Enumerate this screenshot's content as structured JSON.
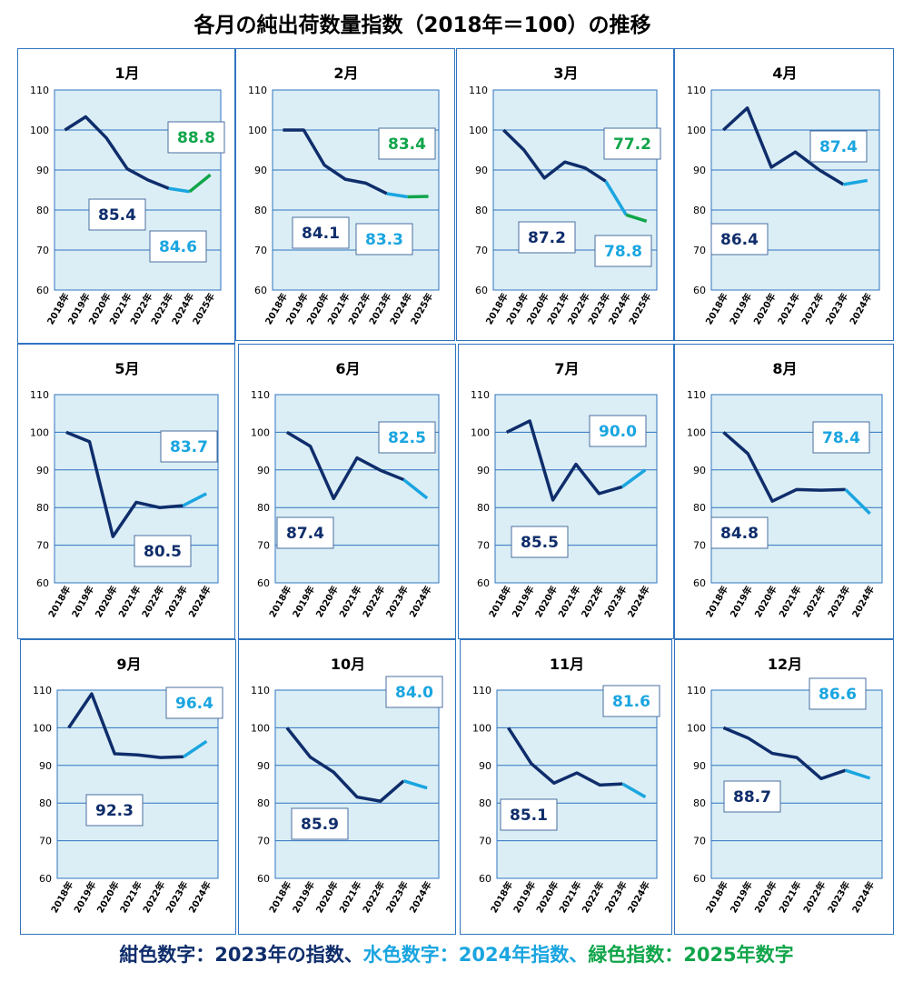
{
  "title": "各月の純出荷数量指数（2018年＝100）の推移",
  "legend": {
    "navy_text": "紺色数字：2023年の指数",
    "sep1": "、",
    "sky_text": "水色数字：2024年指数",
    "sep2": "、",
    "green_text": "緑色指数：2025年数字"
  },
  "colors": {
    "navy": "#0f2d6b",
    "sky": "#1aa5e0",
    "green": "#10a54a",
    "plot_bg": "#dbeef5",
    "grid": "#2f74c0",
    "border": "#2f74c0"
  },
  "chart_data": [
    {
      "type": "line",
      "title": "1月",
      "categories": [
        "2018年",
        "2019年",
        "2020年",
        "2021年",
        "2022年",
        "2023年",
        "2024年",
        "2025年"
      ],
      "values": [
        100,
        103.3,
        98,
        90.3,
        87.5,
        85.4,
        84.6,
        88.8
      ],
      "ylim": [
        60,
        110
      ],
      "yticks": [
        60,
        70,
        80,
        90,
        100,
        110
      ],
      "labels": [
        {
          "text": "85.4",
          "color": "navy"
        },
        {
          "text": "84.6",
          "color": "sky"
        },
        {
          "text": "88.8",
          "color": "green"
        }
      ]
    },
    {
      "type": "line",
      "title": "2月",
      "categories": [
        "2018年",
        "2019年",
        "2020年",
        "2021年",
        "2022年",
        "2023年",
        "2024年",
        "2025年"
      ],
      "values": [
        100,
        100,
        91.2,
        87.7,
        86.7,
        84.1,
        83.3,
        83.4
      ],
      "ylim": [
        60,
        110
      ],
      "yticks": [
        60,
        70,
        80,
        90,
        100,
        110
      ],
      "labels": [
        {
          "text": "84.1",
          "color": "navy"
        },
        {
          "text": "83.3",
          "color": "sky"
        },
        {
          "text": "83.4",
          "color": "green"
        }
      ]
    },
    {
      "type": "line",
      "title": "3月",
      "categories": [
        "2018年",
        "2019年",
        "2020年",
        "2021年",
        "2022年",
        "2023年",
        "2024年",
        "2025年"
      ],
      "values": [
        100,
        95,
        88,
        92,
        90.5,
        87.2,
        78.8,
        77.2
      ],
      "ylim": [
        60,
        110
      ],
      "yticks": [
        60,
        70,
        80,
        90,
        100,
        110
      ],
      "labels": [
        {
          "text": "87.2",
          "color": "navy"
        },
        {
          "text": "78.8",
          "color": "sky"
        },
        {
          "text": "77.2",
          "color": "green"
        }
      ]
    },
    {
      "type": "line",
      "title": "4月",
      "categories": [
        "2018年",
        "2019年",
        "2020年",
        "2021年",
        "2022年",
        "2023年",
        "2024年"
      ],
      "values": [
        100,
        105.5,
        90.7,
        94.5,
        90,
        86.4,
        87.4
      ],
      "ylim": [
        60,
        110
      ],
      "yticks": [
        60,
        70,
        80,
        90,
        100,
        110
      ],
      "labels": [
        {
          "text": "86.4",
          "color": "navy"
        },
        {
          "text": "87.4",
          "color": "sky"
        }
      ]
    },
    {
      "type": "line",
      "title": "5月",
      "categories": [
        "2018年",
        "2019年",
        "2020年",
        "2021年",
        "2022年",
        "2023年",
        "2024年"
      ],
      "values": [
        100,
        97.5,
        72.3,
        81.4,
        80,
        80.5,
        83.7
      ],
      "ylim": [
        60,
        110
      ],
      "yticks": [
        60,
        70,
        80,
        90,
        100,
        110
      ],
      "labels": [
        {
          "text": "80.5",
          "color": "navy"
        },
        {
          "text": "83.7",
          "color": "sky"
        }
      ]
    },
    {
      "type": "line",
      "title": "6月",
      "categories": [
        "2018年",
        "2019年",
        "2020年",
        "2021年",
        "2022年",
        "2023年",
        "2024年"
      ],
      "values": [
        100,
        96.3,
        82.4,
        93.2,
        89.9,
        87.4,
        82.5
      ],
      "ylim": [
        60,
        110
      ],
      "yticks": [
        60,
        70,
        80,
        90,
        100,
        110
      ],
      "labels": [
        {
          "text": "87.4",
          "color": "navy"
        },
        {
          "text": "82.5",
          "color": "sky"
        }
      ]
    },
    {
      "type": "line",
      "title": "7月",
      "categories": [
        "2018年",
        "2019年",
        "2020年",
        "2021年",
        "2022年",
        "2023年",
        "2024年"
      ],
      "values": [
        100,
        103,
        82,
        91.5,
        83.7,
        85.5,
        90
      ],
      "ylim": [
        60,
        110
      ],
      "yticks": [
        60,
        70,
        80,
        90,
        100,
        110
      ],
      "labels": [
        {
          "text": "85.5",
          "color": "navy"
        },
        {
          "text": "90.0",
          "color": "sky"
        }
      ]
    },
    {
      "type": "line",
      "title": "8月",
      "categories": [
        "2018年",
        "2019年",
        "2020年",
        "2021年",
        "2022年",
        "2023年",
        "2024年"
      ],
      "values": [
        100,
        94.3,
        81.7,
        84.8,
        84.6,
        84.8,
        78.4
      ],
      "ylim": [
        60,
        110
      ],
      "yticks": [
        60,
        70,
        80,
        90,
        100,
        110
      ],
      "labels": [
        {
          "text": "84.8",
          "color": "navy"
        },
        {
          "text": "78.4",
          "color": "sky"
        }
      ]
    },
    {
      "type": "line",
      "title": "9月",
      "categories": [
        "2018年",
        "2019年",
        "2020年",
        "2021年",
        "2022年",
        "2023年",
        "2024年"
      ],
      "values": [
        100,
        109,
        93.1,
        92.8,
        92.1,
        92.3,
        96.4
      ],
      "ylim": [
        60,
        110
      ],
      "yticks": [
        60,
        70,
        80,
        90,
        100,
        110
      ],
      "labels": [
        {
          "text": "92.3",
          "color": "navy"
        },
        {
          "text": "96.4",
          "color": "sky"
        }
      ]
    },
    {
      "type": "line",
      "title": "10月",
      "categories": [
        "2018年",
        "2019年",
        "2020年",
        "2021年",
        "2022年",
        "2023年",
        "2024年"
      ],
      "values": [
        100,
        92.2,
        88.2,
        81.6,
        80.5,
        85.9,
        84
      ],
      "ylim": [
        60,
        110
      ],
      "yticks": [
        60,
        70,
        80,
        90,
        100,
        110
      ],
      "labels": [
        {
          "text": "85.9",
          "color": "navy"
        },
        {
          "text": "84.0",
          "color": "sky"
        }
      ]
    },
    {
      "type": "line",
      "title": "11月",
      "categories": [
        "2018年",
        "2019年",
        "2020年",
        "2021年",
        "2022年",
        "2023年",
        "2024年"
      ],
      "values": [
        100,
        90.5,
        85.3,
        88,
        84.8,
        85.1,
        81.6
      ],
      "ylim": [
        60,
        110
      ],
      "yticks": [
        60,
        70,
        80,
        90,
        100,
        110
      ],
      "labels": [
        {
          "text": "85.1",
          "color": "navy"
        },
        {
          "text": "81.6",
          "color": "sky"
        }
      ]
    },
    {
      "type": "line",
      "title": "12月",
      "categories": [
        "2018年",
        "2019年",
        "2020年",
        "2021年",
        "2022年",
        "2023年",
        "2024年"
      ],
      "values": [
        100,
        97.3,
        93.2,
        92.1,
        86.5,
        88.7,
        86.6
      ],
      "ylim": [
        60,
        110
      ],
      "yticks": [
        60,
        70,
        80,
        90,
        100,
        110
      ],
      "labels": [
        {
          "text": "88.7",
          "color": "navy"
        },
        {
          "text": "86.6",
          "color": "sky"
        }
      ]
    }
  ]
}
